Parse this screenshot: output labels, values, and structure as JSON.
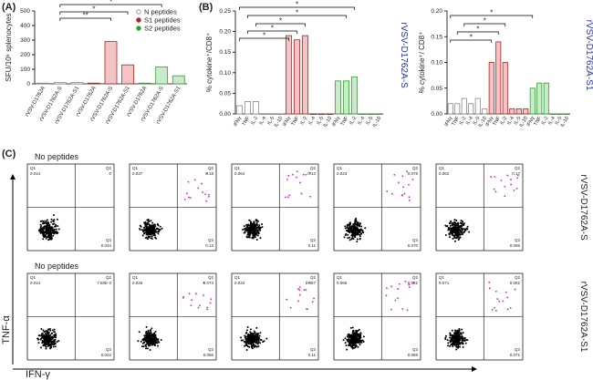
{
  "panels": [
    "(A)",
    "(B)",
    "(C)"
  ],
  "chart_data": [
    {
      "type": "bar",
      "y_label": "SFU/10⁶ splenocytes",
      "categories": [
        "rVSV-D1762A",
        "rVSV-D1762A-S",
        "rVSV-D1762A-S1"
      ],
      "series": [
        {
          "name": "N  peptides",
          "color": "#ffffff",
          "edge_color": "#888888",
          "values": [
            5,
            10,
            10
          ]
        },
        {
          "name": "S1 peptides",
          "color": "#f4c4c4",
          "edge_color": "#b22222",
          "values": [
            5,
            290,
            130
          ]
        },
        {
          "name": "S2 peptides",
          "color": "#c8ecc8",
          "edge_color": "#2ca02c",
          "values": [
            5,
            115,
            55
          ]
        }
      ],
      "ylim": [
        0,
        500
      ],
      "yticks": [
        0,
        100,
        200,
        300,
        400,
        500
      ],
      "annotations": [
        "**",
        "*",
        "*"
      ]
    },
    {
      "type": "bar",
      "y_label": "% cytokine⁺/CD8⁺",
      "side_label": "rVSV-D1762A-S",
      "side_color": "#2233bb",
      "categories": [
        "IFNγ",
        "TNF",
        "IL-2",
        "IL-4",
        "IL-5",
        "IL-10"
      ],
      "series": [
        {
          "color": "#ffffff",
          "edge_color": "#888888",
          "values": [
            0.02,
            0.03,
            0.03,
            0,
            0,
            0
          ]
        },
        {
          "color": "#f4c4c4",
          "edge_color": "#b22222",
          "values": [
            0.19,
            0.18,
            0.19,
            0,
            0,
            0
          ]
        },
        {
          "color": "#c8ecc8",
          "edge_color": "#2ca02c",
          "values": [
            0.08,
            0.08,
            0.09,
            0,
            0,
            0
          ]
        }
      ],
      "ylim": [
        0,
        0.25
      ],
      "yticks": [
        {
          "value": 0,
          "label": "0.00"
        },
        {
          "value": 0.05,
          "label": "0.05"
        },
        {
          "value": 0.1,
          "label": "0.10"
        },
        {
          "value": 0.15,
          "label": "0.15"
        },
        {
          "value": 0.2,
          "label": "0.20"
        },
        {
          "value": 0.25,
          "label": "0.25"
        }
      ],
      "annotations": [
        "*",
        "*",
        "*",
        "*",
        "*"
      ]
    },
    {
      "type": "bar",
      "y_label": "% cytokine⁺/ CD8⁺",
      "side_label": "rVSV-D1762A-S1",
      "side_color": "#2233bb",
      "categories": [
        "IFNγ",
        "TNF",
        "IL-2",
        "IL-4",
        "IL-5",
        "IL-10"
      ],
      "series": [
        {
          "color": "#ffffff",
          "edge_color": "#888888",
          "values": [
            0.02,
            0.02,
            0.03,
            0.02,
            0.03,
            0.01
          ]
        },
        {
          "color": "#f4c4c4",
          "edge_color": "#b22222",
          "values": [
            0.1,
            0.14,
            0.1,
            0.01,
            0.01,
            0.01
          ]
        },
        {
          "color": "#c8ecc8",
          "edge_color": "#2ca02c",
          "values": [
            0.05,
            0.06,
            0.06,
            0,
            0,
            0
          ]
        }
      ],
      "ylim": [
        0,
        0.2
      ],
      "yticks": [
        {
          "value": 0,
          "label": "0.00"
        },
        {
          "value": 0.05,
          "label": "0.05"
        },
        {
          "value": 0.1,
          "label": "0.10"
        },
        {
          "value": 0.15,
          "label": "0.15"
        },
        {
          "value": 0.2,
          "label": "0.20"
        }
      ],
      "annotations": [
        "*",
        "*",
        "*",
        "*"
      ]
    }
  ],
  "flow": {
    "y_label": "TNF-α",
    "x_label": "IFN-γ",
    "quadrants": [
      "Q1",
      "Q2",
      "Q3"
    ],
    "rows": [
      {
        "label": "rVSV-D1762A-S",
        "title": "No peptides",
        "plots": [
          [
            "0.014",
            "0",
            "0.034"
          ],
          [
            "0.037",
            "0.18",
            "0.13"
          ],
          [
            "0.064",
            "0.13",
            "0.11"
          ],
          [
            "0.023",
            "0.079",
            "0.070"
          ],
          [
            "0.062",
            "0.17",
            "0.095"
          ]
        ]
      },
      {
        "label": "rVSV-D1762A-S1",
        "title": "No peptides",
        "plots": [
          [
            "0.014",
            "7.60E-3",
            "0.022"
          ],
          [
            "0.026",
            "0.074",
            "0.066"
          ],
          [
            "0.034",
            "0.057",
            "0.11"
          ],
          [
            "0.085",
            "0.081",
            "0.069"
          ],
          [
            "0.071",
            "0.081",
            "0.071"
          ]
        ]
      }
    ]
  }
}
